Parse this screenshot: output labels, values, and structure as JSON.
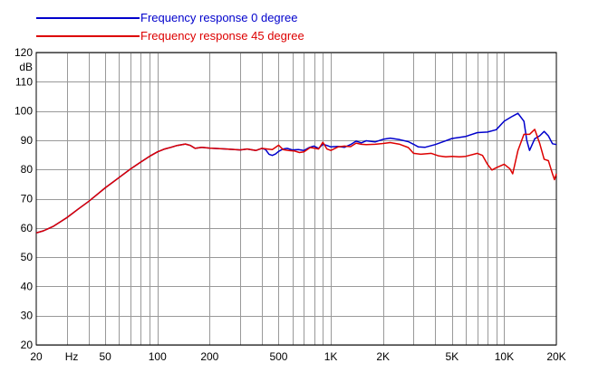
{
  "chart_data": {
    "type": "line",
    "ylabel": "dB",
    "xlabel_unit": "Hz",
    "x_scale": "log",
    "xlim": [
      20,
      20000
    ],
    "ylim": [
      20,
      120
    ],
    "grid": true,
    "legend_position": "top-left",
    "y_ticks": [
      "120",
      "110",
      "100",
      "90",
      "80",
      "70",
      "60",
      "50",
      "40",
      "30",
      "20"
    ],
    "x_ticks": [
      {
        "value": 20,
        "label": "20"
      },
      {
        "value": 50,
        "label": "50"
      },
      {
        "value": 100,
        "label": "100"
      },
      {
        "value": 200,
        "label": "200"
      },
      {
        "value": 500,
        "label": "500"
      },
      {
        "value": 1000,
        "label": "1K"
      },
      {
        "value": 2000,
        "label": "2K"
      },
      {
        "value": 5000,
        "label": "5K"
      },
      {
        "value": 10000,
        "label": "10K"
      },
      {
        "value": 20000,
        "label": "20K"
      }
    ],
    "series": [
      {
        "name": "Frequency response 0 degree",
        "color": "#0000cc",
        "points": [
          [
            20,
            58.3
          ],
          [
            22,
            59
          ],
          [
            25,
            60.5
          ],
          [
            30,
            63.5
          ],
          [
            35,
            66.5
          ],
          [
            40,
            69
          ],
          [
            45,
            71.5
          ],
          [
            50,
            73.7
          ],
          [
            60,
            77.2
          ],
          [
            70,
            80.2
          ],
          [
            80,
            82.5
          ],
          [
            90,
            84.5
          ],
          [
            100,
            86
          ],
          [
            110,
            87
          ],
          [
            120,
            87.6
          ],
          [
            130,
            88.2
          ],
          [
            145,
            88.7
          ],
          [
            155,
            88.2
          ],
          [
            165,
            87.2
          ],
          [
            180,
            87.6
          ],
          [
            200,
            87.3
          ],
          [
            250,
            87
          ],
          [
            300,
            86.7
          ],
          [
            330,
            87
          ],
          [
            370,
            86.5
          ],
          [
            400,
            87.2
          ],
          [
            420,
            86.8
          ],
          [
            440,
            85.2
          ],
          [
            460,
            84.8
          ],
          [
            480,
            85.3
          ],
          [
            500,
            86.2
          ],
          [
            530,
            87
          ],
          [
            560,
            87.2
          ],
          [
            600,
            86.7
          ],
          [
            650,
            86.8
          ],
          [
            700,
            86.5
          ],
          [
            750,
            87.5
          ],
          [
            800,
            88
          ],
          [
            850,
            87.2
          ],
          [
            900,
            88.6
          ],
          [
            950,
            88.2
          ],
          [
            1000,
            87.7
          ],
          [
            1100,
            87.9
          ],
          [
            1200,
            87.6
          ],
          [
            1300,
            88.5
          ],
          [
            1400,
            89.7
          ],
          [
            1500,
            89.1
          ],
          [
            1600,
            89.8
          ],
          [
            1800,
            89.4
          ],
          [
            2000,
            90.3
          ],
          [
            2200,
            90.7
          ],
          [
            2500,
            90.2
          ],
          [
            2800,
            89.5
          ],
          [
            3000,
            88.6
          ],
          [
            3200,
            87.7
          ],
          [
            3500,
            87.6
          ],
          [
            4000,
            88.5
          ],
          [
            4500,
            89.6
          ],
          [
            5000,
            90.6
          ],
          [
            6000,
            91.3
          ],
          [
            7000,
            92.6
          ],
          [
            8000,
            92.8
          ],
          [
            9000,
            93.6
          ],
          [
            10000,
            96.5
          ],
          [
            11000,
            98
          ],
          [
            12000,
            99.2
          ],
          [
            13000,
            96.5
          ],
          [
            13500,
            90
          ],
          [
            14000,
            86.5
          ],
          [
            15000,
            90.5
          ],
          [
            16000,
            91.5
          ],
          [
            17000,
            93
          ],
          [
            18000,
            91.5
          ],
          [
            19000,
            88.8
          ],
          [
            20000,
            88.5
          ]
        ]
      },
      {
        "name": "Frequency response 45 degree",
        "color": "#dd0000",
        "points": [
          [
            20,
            58.3
          ],
          [
            22,
            59
          ],
          [
            25,
            60.5
          ],
          [
            30,
            63.5
          ],
          [
            35,
            66.5
          ],
          [
            40,
            69
          ],
          [
            45,
            71.5
          ],
          [
            50,
            73.7
          ],
          [
            60,
            77.2
          ],
          [
            70,
            80.2
          ],
          [
            80,
            82.5
          ],
          [
            90,
            84.5
          ],
          [
            100,
            86
          ],
          [
            110,
            87
          ],
          [
            120,
            87.6
          ],
          [
            130,
            88.2
          ],
          [
            145,
            88.7
          ],
          [
            155,
            88.2
          ],
          [
            165,
            87.2
          ],
          [
            180,
            87.6
          ],
          [
            200,
            87.3
          ],
          [
            250,
            87
          ],
          [
            300,
            86.7
          ],
          [
            330,
            87
          ],
          [
            370,
            86.5
          ],
          [
            400,
            87.2
          ],
          [
            430,
            87
          ],
          [
            460,
            86.8
          ],
          [
            500,
            88.3
          ],
          [
            530,
            86.8
          ],
          [
            570,
            86.5
          ],
          [
            620,
            86.3
          ],
          [
            660,
            85.8
          ],
          [
            700,
            86
          ],
          [
            760,
            87.5
          ],
          [
            800,
            87.3
          ],
          [
            850,
            87
          ],
          [
            900,
            89.3
          ],
          [
            950,
            87
          ],
          [
            1000,
            86.5
          ],
          [
            1100,
            87.7
          ],
          [
            1200,
            88
          ],
          [
            1300,
            87.8
          ],
          [
            1400,
            89
          ],
          [
            1500,
            88.6
          ],
          [
            1600,
            88.5
          ],
          [
            1800,
            88.6
          ],
          [
            2000,
            88.9
          ],
          [
            2200,
            89.2
          ],
          [
            2500,
            88.6
          ],
          [
            2800,
            87.5
          ],
          [
            3000,
            85.5
          ],
          [
            3300,
            85.2
          ],
          [
            3800,
            85.5
          ],
          [
            4200,
            84.6
          ],
          [
            4600,
            84.3
          ],
          [
            5000,
            84.5
          ],
          [
            5500,
            84.3
          ],
          [
            6000,
            84.5
          ],
          [
            7000,
            85.5
          ],
          [
            7500,
            84.8
          ],
          [
            8000,
            81.8
          ],
          [
            8500,
            79.8
          ],
          [
            9000,
            80.6
          ],
          [
            10000,
            81.8
          ],
          [
            10800,
            80.2
          ],
          [
            11200,
            78.5
          ],
          [
            12000,
            86.5
          ],
          [
            13000,
            92
          ],
          [
            14000,
            92
          ],
          [
            15000,
            93.7
          ],
          [
            16000,
            89
          ],
          [
            17000,
            83.5
          ],
          [
            18000,
            83
          ],
          [
            19000,
            78.5
          ],
          [
            19500,
            76.5
          ],
          [
            20000,
            78.5
          ]
        ]
      }
    ]
  }
}
